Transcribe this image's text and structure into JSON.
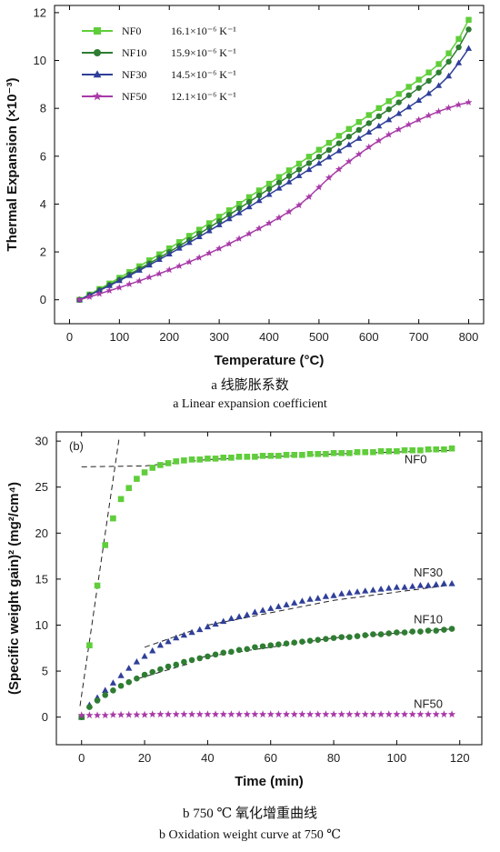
{
  "captions": {
    "a_cn": "a  线膨胀系数",
    "a_en": "a  Linear expansion coefficient",
    "b_cn": "b  750 ℃ 氧化增重曲线",
    "b_en": "b  Oxidation weight curve at 750 ℃"
  },
  "chart_data": [
    {
      "type": "line",
      "title": "",
      "xlabel": "Temperature (°C)",
      "ylabel": "Thermal Expansion (×10⁻³)",
      "xlim": [
        -30,
        830
      ],
      "ylim": [
        -1,
        12.3
      ],
      "xticks": [
        0,
        100,
        200,
        300,
        400,
        500,
        600,
        700,
        800
      ],
      "yticks": [
        0,
        2,
        4,
        6,
        8,
        10,
        12
      ],
      "legend_position": "top-left",
      "x": [
        20,
        40,
        60,
        80,
        100,
        120,
        140,
        160,
        180,
        200,
        220,
        240,
        260,
        280,
        300,
        320,
        340,
        360,
        380,
        400,
        420,
        440,
        460,
        480,
        500,
        520,
        540,
        560,
        580,
        600,
        620,
        640,
        660,
        680,
        700,
        720,
        740,
        760,
        780,
        800
      ],
      "series": [
        {
          "name": "NF0",
          "coef_text": "16.1×10⁻⁶ K⁻¹",
          "color": "#5fce3a",
          "marker": "square",
          "values": [
            0.0,
            0.22,
            0.45,
            0.68,
            0.92,
            1.16,
            1.4,
            1.65,
            1.9,
            2.15,
            2.41,
            2.67,
            2.93,
            3.2,
            3.47,
            3.74,
            4.01,
            4.29,
            4.57,
            4.85,
            5.13,
            5.41,
            5.69,
            5.98,
            6.27,
            6.56,
            6.85,
            7.14,
            7.43,
            7.72,
            8.01,
            8.3,
            8.6,
            8.9,
            9.2,
            9.5,
            9.85,
            10.3,
            10.9,
            11.7
          ]
        },
        {
          "name": "NF10",
          "coef_text": "15.9×10⁻⁶ K⁻¹",
          "color": "#2e7d32",
          "marker": "circle",
          "values": [
            0.0,
            0.2,
            0.41,
            0.62,
            0.84,
            1.06,
            1.29,
            1.52,
            1.76,
            2.0,
            2.25,
            2.5,
            2.76,
            3.02,
            3.28,
            3.55,
            3.82,
            4.09,
            4.36,
            4.63,
            4.9,
            5.17,
            5.44,
            5.71,
            5.98,
            6.26,
            6.54,
            6.82,
            7.1,
            7.38,
            7.67,
            7.96,
            8.25,
            8.55,
            8.85,
            9.15,
            9.5,
            9.95,
            10.55,
            11.3
          ]
        },
        {
          "name": "NF30",
          "coef_text": "14.5×10⁻⁶ K⁻¹",
          "color": "#2f3f99",
          "marker": "triangle",
          "values": [
            0.0,
            0.19,
            0.39,
            0.59,
            0.8,
            1.01,
            1.23,
            1.45,
            1.68,
            1.91,
            2.15,
            2.39,
            2.63,
            2.88,
            3.13,
            3.38,
            3.63,
            3.88,
            4.14,
            4.4,
            4.66,
            4.92,
            5.18,
            5.44,
            5.7,
            5.96,
            6.22,
            6.48,
            6.74,
            7.0,
            7.26,
            7.52,
            7.78,
            8.05,
            8.33,
            8.62,
            8.95,
            9.35,
            9.9,
            10.5
          ]
        },
        {
          "name": "NF50",
          "coef_text": "12.1×10⁻⁶ K⁻¹",
          "color": "#a83aa8",
          "marker": "star",
          "values": [
            0.0,
            0.12,
            0.25,
            0.38,
            0.51,
            0.65,
            0.79,
            0.94,
            1.09,
            1.25,
            1.41,
            1.58,
            1.76,
            1.95,
            2.14,
            2.34,
            2.55,
            2.76,
            2.98,
            3.2,
            3.43,
            3.68,
            3.95,
            4.3,
            4.7,
            5.1,
            5.45,
            5.78,
            6.08,
            6.38,
            6.65,
            6.9,
            7.12,
            7.32,
            7.52,
            7.7,
            7.87,
            8.02,
            8.15,
            8.25
          ]
        }
      ]
    },
    {
      "type": "scatter",
      "title": "",
      "panel_label": "(b)",
      "xlabel": "Time (min)",
      "ylabel": "(Specific weight gain)² (mg²/cm⁴)",
      "xlim": [
        -8,
        127
      ],
      "ylim": [
        -3,
        31
      ],
      "xticks": [
        0,
        20,
        40,
        60,
        80,
        100,
        120
      ],
      "yticks": [
        0,
        5,
        10,
        15,
        20,
        25,
        30
      ],
      "x": [
        0,
        2.5,
        5,
        7.5,
        10,
        12.5,
        15,
        17.5,
        20,
        22.5,
        25,
        27.5,
        30,
        32.5,
        35,
        37.5,
        40,
        42.5,
        45,
        47.5,
        50,
        52.5,
        55,
        57.5,
        60,
        62.5,
        65,
        67.5,
        70,
        72.5,
        75,
        77.5,
        80,
        82.5,
        85,
        87.5,
        90,
        92.5,
        95,
        97.5,
        100,
        102.5,
        105,
        107.5,
        110,
        112.5,
        115,
        117.5
      ],
      "series": [
        {
          "name": "NF0",
          "color": "#5fce3a",
          "marker": "square",
          "values": [
            0,
            7.8,
            14.3,
            18.7,
            21.6,
            23.7,
            24.9,
            25.9,
            26.6,
            27.1,
            27.4,
            27.6,
            27.8,
            27.9,
            28.0,
            28.0,
            28.1,
            28.1,
            28.2,
            28.2,
            28.3,
            28.3,
            28.3,
            28.4,
            28.4,
            28.4,
            28.5,
            28.5,
            28.5,
            28.6,
            28.6,
            28.6,
            28.7,
            28.7,
            28.7,
            28.8,
            28.8,
            28.8,
            28.9,
            28.9,
            28.9,
            29.0,
            29.0,
            29.0,
            29.1,
            29.1,
            29.1,
            29.2
          ]
        },
        {
          "name": "NF30",
          "color": "#2f3f99",
          "marker": "triangle",
          "values": [
            0,
            1.3,
            2.1,
            2.9,
            3.7,
            4.5,
            5.3,
            6.0,
            6.6,
            7.2,
            7.8,
            8.2,
            8.6,
            8.9,
            9.2,
            9.5,
            9.8,
            10.1,
            10.4,
            10.7,
            10.9,
            11.1,
            11.4,
            11.6,
            11.8,
            12.0,
            12.2,
            12.4,
            12.6,
            12.8,
            12.9,
            13.1,
            13.2,
            13.4,
            13.5,
            13.6,
            13.7,
            13.8,
            13.9,
            14.0,
            14.1,
            14.1,
            14.2,
            14.3,
            14.3,
            14.4,
            14.5,
            14.5
          ]
        },
        {
          "name": "NF10",
          "color": "#2e7d32",
          "marker": "circle",
          "values": [
            0,
            1.1,
            1.8,
            2.4,
            2.9,
            3.4,
            3.8,
            4.2,
            4.6,
            4.9,
            5.2,
            5.5,
            5.7,
            6.0,
            6.2,
            6.4,
            6.6,
            6.8,
            7.0,
            7.1,
            7.3,
            7.4,
            7.6,
            7.7,
            7.8,
            7.9,
            8.0,
            8.1,
            8.2,
            8.3,
            8.4,
            8.5,
            8.6,
            8.7,
            8.7,
            8.8,
            8.9,
            9.0,
            9.0,
            9.1,
            9.2,
            9.2,
            9.3,
            9.3,
            9.4,
            9.4,
            9.5,
            9.6
          ]
        },
        {
          "name": "NF50",
          "color": "#a83aa8",
          "marker": "star",
          "values": [
            0.2,
            0.2,
            0.2,
            0.2,
            0.25,
            0.25,
            0.25,
            0.25,
            0.25,
            0.3,
            0.3,
            0.3,
            0.3,
            0.3,
            0.3,
            0.3,
            0.3,
            0.3,
            0.3,
            0.3,
            0.3,
            0.3,
            0.3,
            0.3,
            0.3,
            0.3,
            0.3,
            0.3,
            0.3,
            0.3,
            0.3,
            0.3,
            0.3,
            0.3,
            0.3,
            0.3,
            0.3,
            0.3,
            0.3,
            0.3,
            0.3,
            0.3,
            0.3,
            0.3,
            0.3,
            0.3,
            0.3,
            0.3
          ]
        }
      ],
      "fit_lines": [
        {
          "points": [
            [
              -0.5,
              1.2
            ],
            [
              12,
              30.5
            ]
          ]
        },
        {
          "points": [
            [
              0,
              27.2
            ],
            [
              20,
              27.3
            ],
            [
              40,
              28.0
            ],
            [
              80,
              28.6
            ],
            [
              118,
              29.0
            ]
          ]
        },
        {
          "points": [
            [
              20,
              7.6
            ],
            [
              36,
              9.5
            ]
          ]
        },
        {
          "points": [
            [
              40,
              10.0
            ],
            [
              80,
              12.7
            ],
            [
              118,
              14.4
            ]
          ]
        },
        {
          "points": [
            [
              18,
              4.2
            ],
            [
              34,
              5.8
            ]
          ]
        },
        {
          "points": [
            [
              38,
              6.5
            ],
            [
              80,
              8.6
            ],
            [
              118,
              9.6
            ]
          ]
        }
      ],
      "annotations": [
        {
          "text": "NF0",
          "x": 106,
          "y": 27.6
        },
        {
          "text": "NF30",
          "x": 110,
          "y": 15.3
        },
        {
          "text": "NF10",
          "x": 110,
          "y": 10.2
        },
        {
          "text": "NF50",
          "x": 110,
          "y": 1.0
        }
      ]
    }
  ]
}
